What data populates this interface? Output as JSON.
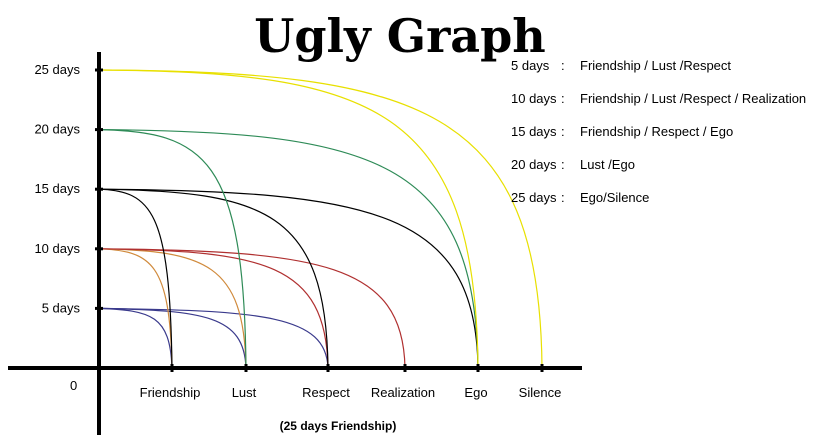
{
  "chart_data": {
    "type": "line",
    "title": "Ugly Graph",
    "caption": "(25 days Friendship)",
    "origin_label": "0",
    "y_ticks": [
      {
        "value": 5,
        "label": "5 days"
      },
      {
        "value": 10,
        "label": "10 days"
      },
      {
        "value": 15,
        "label": "15 days"
      },
      {
        "value": 20,
        "label": "20 days"
      },
      {
        "value": 25,
        "label": "25 days"
      }
    ],
    "categories": [
      "Friendship",
      "Lust",
      "Respect",
      "Realization",
      "Ego",
      "Silence"
    ],
    "legend": [
      {
        "days": "5 days",
        "sep": ":",
        "items": "Friendship / Lust  /Respect"
      },
      {
        "days": "10 days",
        "sep": ":",
        "items": "Friendship / Lust  /Respect / Realization"
      },
      {
        "days": "15 days",
        "sep": ":",
        "items": "Friendship / Respect / Ego"
      },
      {
        "days": "20 days",
        "sep": ":",
        "items": "Lust  /Ego"
      },
      {
        "days": "25 days",
        "sep": ":",
        "items": "Ego/Silence"
      }
    ],
    "series": [
      {
        "start": 5,
        "end": "Friendship",
        "color": "#3a3a8c"
      },
      {
        "start": 5,
        "end": "Lust",
        "color": "#3a3a8c"
      },
      {
        "start": 5,
        "end": "Respect",
        "color": "#3a3a8c"
      },
      {
        "start": 10,
        "end": "Friendship",
        "color": "#d08a3c"
      },
      {
        "start": 10,
        "end": "Lust",
        "color": "#d08a3c"
      },
      {
        "start": 10,
        "end": "Respect",
        "color": "#b03030"
      },
      {
        "start": 10,
        "end": "Realization",
        "color": "#b03030"
      },
      {
        "start": 15,
        "end": "Friendship",
        "color": "#000000"
      },
      {
        "start": 15,
        "end": "Respect",
        "color": "#000000"
      },
      {
        "start": 15,
        "end": "Ego",
        "color": "#000000"
      },
      {
        "start": 20,
        "end": "Lust",
        "color": "#2e8b57"
      },
      {
        "start": 20,
        "end": "Ego",
        "color": "#2e8b57"
      },
      {
        "start": 25,
        "end": "Ego",
        "color": "#e8e000"
      },
      {
        "start": 25,
        "end": "Silence",
        "color": "#e8e000"
      }
    ]
  }
}
